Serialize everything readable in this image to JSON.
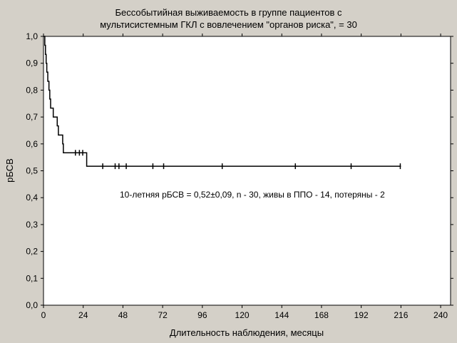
{
  "chart_data": {
    "type": "line",
    "title": "Бессобытийная выживаемость в группе пациентов с",
    "subtitle": "мультисистемным  ГКЛ с вовлечением \"органов риска\",  = 30",
    "xlabel": "Длительность наблюдения, месяцы",
    "ylabel": "рБСВ",
    "xlim": [
      0,
      246
    ],
    "ylim": [
      0,
      1.0
    ],
    "x_ticks": [
      0,
      24,
      48,
      72,
      96,
      120,
      144,
      168,
      192,
      216,
      240
    ],
    "y_ticks": [
      0.0,
      0.1,
      0.2,
      0.3,
      0.4,
      0.5,
      0.6,
      0.7,
      0.8,
      0.9,
      1.0
    ],
    "y_tick_labels": [
      "0,0",
      "0,1",
      "0,2",
      "0,3",
      "0,4",
      "0,5",
      "0,6",
      "0,7",
      "0,8",
      "0,9",
      "1,0"
    ],
    "annotation": "10-летняя рБСВ = 0,52±0,09, n - 30, живы в ППО - 14, потеряны - 2",
    "series": [
      {
        "step": [
          [
            0,
            1.0
          ],
          [
            0.8,
            0.967
          ],
          [
            1.2,
            0.933
          ],
          [
            1.6,
            0.9
          ],
          [
            2.0,
            0.867
          ],
          [
            2.6,
            0.833
          ],
          [
            3.3,
            0.8
          ],
          [
            3.8,
            0.767
          ],
          [
            4.3,
            0.733
          ],
          [
            5.9,
            0.7
          ],
          [
            8.3,
            0.667
          ],
          [
            9.0,
            0.633
          ],
          [
            11.6,
            0.6
          ],
          [
            12.0,
            0.567
          ],
          [
            26.1,
            0.517
          ],
          [
            216,
            0.517
          ]
        ],
        "censored": [
          [
            19.3,
            0.567
          ],
          [
            21.7,
            0.567
          ],
          [
            23.7,
            0.567
          ],
          [
            35.8,
            0.517
          ],
          [
            43.3,
            0.517
          ],
          [
            45.6,
            0.517
          ],
          [
            50.0,
            0.517
          ],
          [
            66.1,
            0.517
          ],
          [
            72.6,
            0.517
          ],
          [
            108.0,
            0.517
          ],
          [
            152.2,
            0.517
          ],
          [
            185.9,
            0.517
          ],
          [
            215.6,
            0.517
          ]
        ]
      }
    ]
  }
}
